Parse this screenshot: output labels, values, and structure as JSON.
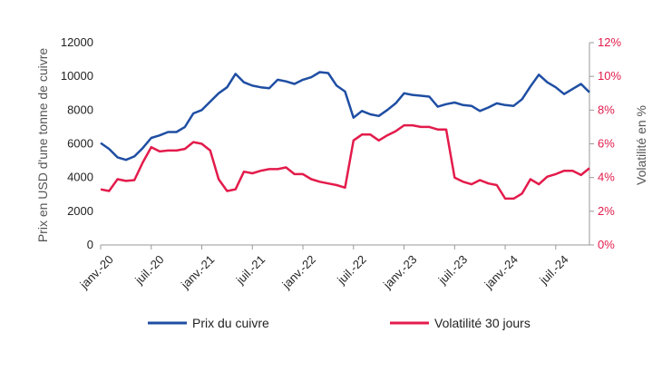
{
  "chart_data": {
    "type": "line",
    "title": "",
    "x_labels": [
      "janv.-20",
      "juil.-20",
      "janv.-21",
      "juil.-21",
      "janv.-22",
      "juil.-22",
      "janv.-23",
      "juil.-23",
      "janv.-24",
      "juil.-24"
    ],
    "y_left": {
      "label": "Prix en USD d'une tonne de cuivre",
      "ticks": [
        "0",
        "2000",
        "4000",
        "6000",
        "8000",
        "10000",
        "12000"
      ],
      "range": [
        0,
        12000
      ]
    },
    "y_right": {
      "label": "Volatilité en %",
      "ticks": [
        "0%",
        "2%",
        "4%",
        "6%",
        "8%",
        "10%",
        "12%"
      ],
      "range": [
        0,
        12
      ],
      "color": "#e31b4b"
    },
    "series": [
      {
        "name": "Prix du cuivre",
        "axis": "left",
        "color": "#1f4ea3",
        "values": [
          6050,
          5700,
          5200,
          5050,
          5250,
          5750,
          6350,
          6500,
          6700,
          6700,
          7000,
          7800,
          8000,
          8500,
          9000,
          9350,
          10150,
          9650,
          9450,
          9350,
          9300,
          9800,
          9700,
          9550,
          9800,
          9950,
          10250,
          10200,
          9450,
          9100,
          7550,
          7950,
          7750,
          7650,
          8000,
          8400,
          9000,
          8900,
          8850,
          8800,
          8200,
          8350,
          8450,
          8300,
          8250,
          7950,
          8150,
          8400,
          8300,
          8250,
          8650,
          9400,
          10100,
          9650,
          9350,
          8950,
          9250,
          9550,
          9050
        ]
      },
      {
        "name": "Volatilité 30 jours",
        "axis": "right",
        "color": "#e31b4b",
        "values": [
          3.3,
          3.2,
          3.9,
          3.8,
          3.85,
          4.9,
          5.8,
          5.55,
          5.6,
          5.6,
          5.7,
          6.1,
          6.0,
          5.6,
          3.9,
          3.2,
          3.3,
          4.35,
          4.25,
          4.4,
          4.5,
          4.5,
          4.6,
          4.2,
          4.2,
          3.9,
          3.75,
          3.65,
          3.55,
          3.4,
          6.2,
          6.55,
          6.55,
          6.2,
          6.5,
          6.75,
          7.1,
          7.1,
          7.0,
          7.0,
          6.85,
          6.85,
          4.0,
          3.75,
          3.6,
          3.85,
          3.65,
          3.55,
          2.75,
          2.75,
          3.05,
          3.9,
          3.6,
          4.05,
          4.2,
          4.4,
          4.4,
          4.15,
          4.55
        ]
      }
    ],
    "legend_position": "bottom",
    "grid": false
  }
}
